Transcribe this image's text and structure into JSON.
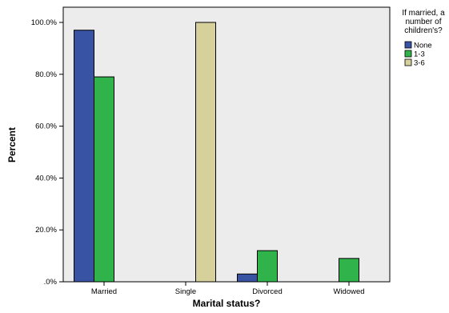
{
  "chart_data": {
    "type": "bar",
    "xlabel": "Marital status?",
    "ylabel": "Percent",
    "categories": [
      "Married",
      "Single",
      "Divorced",
      "Widowed"
    ],
    "ylim": [
      0,
      100
    ],
    "yticks": [
      0,
      20,
      40,
      60,
      80,
      100
    ],
    "ytick_labels": [
      ".0%",
      "20.0%",
      "40.0%",
      "60.0%",
      "80.0%",
      "100.0%"
    ],
    "legend_title": "If married, a number of children's?",
    "legend_title_lines": [
      "If married, a",
      "number of",
      "children's?"
    ],
    "legend_position": "right",
    "grid": false,
    "plot_background": "#ececec",
    "series": [
      {
        "name": "None",
        "color": "#3953a4",
        "values": [
          97,
          0,
          3,
          0
        ]
      },
      {
        "name": "1-3",
        "color": "#30b34a",
        "values": [
          79,
          0,
          12,
          9
        ]
      },
      {
        "name": "3-6",
        "color": "#d6d09a",
        "values": [
          0,
          100,
          0,
          0
        ]
      }
    ]
  }
}
